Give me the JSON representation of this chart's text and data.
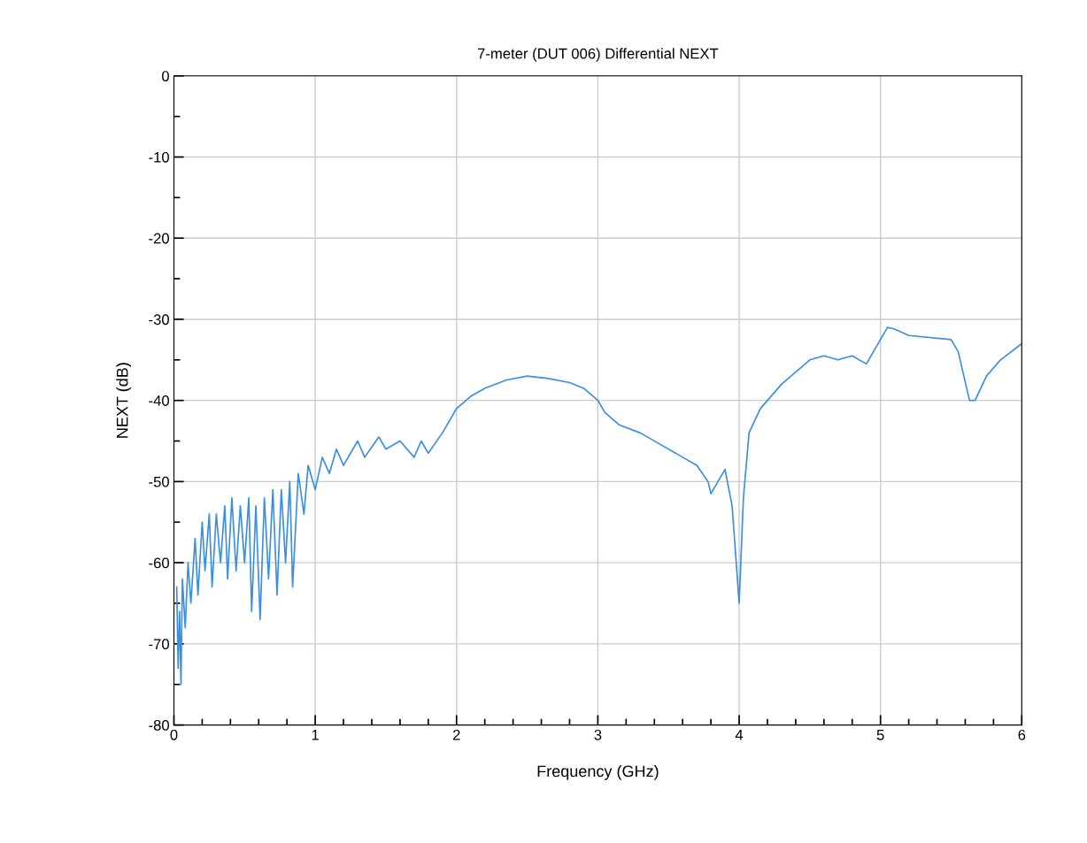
{
  "chart_data": {
    "type": "line",
    "title": "7-meter (DUT 006) Differential NEXT",
    "xlabel": "Frequency (GHz)",
    "ylabel": "NEXT (dB)",
    "xlim": [
      0,
      6
    ],
    "ylim": [
      -80,
      0
    ],
    "xticks": [
      0,
      {
        "value": 0.2,
        "label": null
      },
      {
        "value": 0.4,
        "label": null
      },
      {
        "value": 0.6,
        "label": null
      },
      {
        "value": 0.8,
        "label": null
      },
      1,
      {
        "value": 1.2,
        "label": null
      },
      {
        "value": 1.4,
        "label": null
      },
      {
        "value": 1.6,
        "label": null
      },
      {
        "value": 1.8,
        "label": null
      },
      2,
      {
        "value": 2.2,
        "label": null
      },
      {
        "value": 2.4,
        "label": null
      },
      {
        "value": 2.6,
        "label": null
      },
      {
        "value": 2.8,
        "label": null
      },
      3,
      {
        "value": 3.2,
        "label": null
      },
      {
        "value": 3.4,
        "label": null
      },
      {
        "value": 3.6,
        "label": null
      },
      {
        "value": 3.8,
        "label": null
      },
      4,
      {
        "value": 4.2,
        "label": null
      },
      {
        "value": 4.4,
        "label": null
      },
      {
        "value": 4.6,
        "label": null
      },
      {
        "value": 4.8,
        "label": null
      },
      5,
      {
        "value": 5.2,
        "label": null
      },
      {
        "value": 5.4,
        "label": null
      },
      {
        "value": 5.6,
        "label": null
      },
      {
        "value": 5.8,
        "label": null
      },
      6
    ],
    "yticks": [
      -80,
      {
        "value": -75,
        "label": null
      },
      -70,
      {
        "value": -65,
        "label": null
      },
      -60,
      {
        "value": -55,
        "label": null
      },
      -50,
      {
        "value": -45,
        "label": null
      },
      -40,
      {
        "value": -35,
        "label": null
      },
      -30,
      {
        "value": -25,
        "label": null
      },
      -20,
      {
        "value": -15,
        "label": null
      },
      -10,
      {
        "value": -5,
        "label": null
      },
      0
    ],
    "grid": true,
    "x": [
      0.02,
      0.03,
      0.04,
      0.05,
      0.06,
      0.08,
      0.1,
      0.12,
      0.15,
      0.17,
      0.2,
      0.22,
      0.25,
      0.27,
      0.3,
      0.33,
      0.36,
      0.38,
      0.41,
      0.44,
      0.47,
      0.5,
      0.53,
      0.55,
      0.58,
      0.61,
      0.64,
      0.67,
      0.7,
      0.73,
      0.76,
      0.79,
      0.82,
      0.84,
      0.88,
      0.92,
      0.95,
      1.0,
      1.05,
      1.1,
      1.15,
      1.2,
      1.3,
      1.35,
      1.45,
      1.5,
      1.6,
      1.7,
      1.75,
      1.8,
      1.9,
      2.0,
      2.1,
      2.2,
      2.35,
      2.5,
      2.65,
      2.8,
      2.9,
      3.0,
      3.05,
      3.15,
      3.3,
      3.45,
      3.6,
      3.7,
      3.78,
      3.8,
      3.85,
      3.9,
      3.95,
      4.0,
      4.03,
      4.07,
      4.15,
      4.3,
      4.5,
      4.6,
      4.7,
      4.8,
      4.9,
      4.95,
      5.05,
      5.1,
      5.2,
      5.5,
      5.55,
      5.63,
      5.67,
      5.75,
      5.85,
      6.0
    ],
    "series": [
      {
        "color": "#3a8fe0",
        "values": [
          -63,
          -73,
          -66,
          -75,
          -62,
          -68,
          -60,
          -65,
          -57,
          -64,
          -55,
          -61,
          -54,
          -63,
          -54,
          -60,
          -53,
          -62,
          -52,
          -61,
          -53,
          -60,
          -52,
          -66,
          -53,
          -67,
          -52,
          -62,
          -51,
          -64,
          -51,
          -60,
          -50,
          -63,
          -49,
          -54,
          -48,
          -51,
          -47,
          -49,
          -46,
          -48,
          -45,
          -47,
          -44.5,
          -46,
          -45,
          -47,
          -45,
          -46.5,
          -44,
          -41,
          -39.5,
          -38.5,
          -37.5,
          -37,
          -37.3,
          -37.8,
          -38.5,
          -40,
          -41.5,
          -43,
          -44,
          -45.5,
          -47,
          -48,
          -50,
          -51.5,
          -50,
          -48.5,
          -53,
          -65,
          -52,
          -44,
          -41,
          -38,
          -35,
          -34.5,
          -35,
          -34.5,
          -35.5,
          -34,
          -31,
          -31.2,
          -32,
          -32.5,
          -34,
          -40,
          -40,
          -37,
          -35,
          -33
        ]
      }
    ]
  }
}
